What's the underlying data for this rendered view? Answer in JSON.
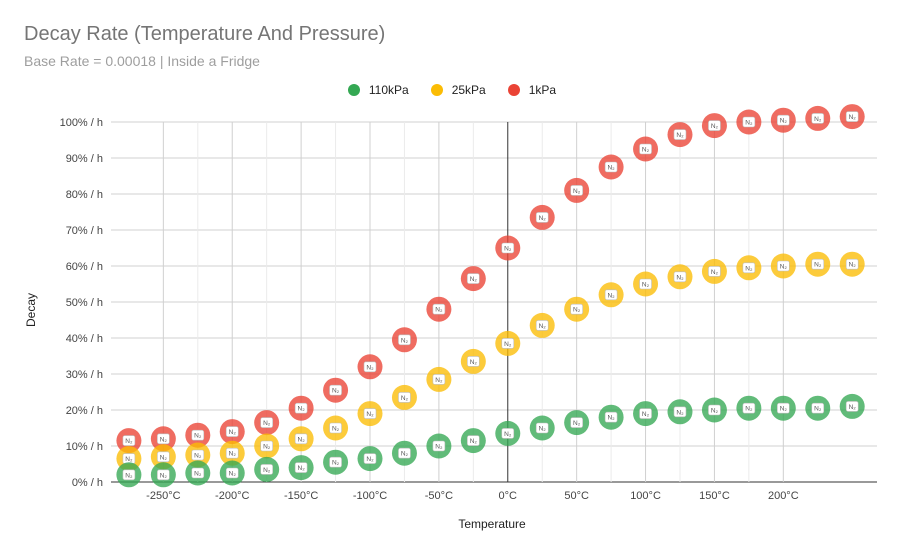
{
  "chart_data": {
    "type": "scatter",
    "title": "Decay Rate (Temperature And Pressure)",
    "subtitle": "Base Rate = 0.00018 | Inside a Fridge",
    "xlabel": "Temperature",
    "ylabel": "Decay",
    "xlim": [
      -288,
      268
    ],
    "ylim": [
      0,
      100
    ],
    "x_ticks": [
      -250,
      -200,
      -150,
      -100,
      -50,
      0,
      50,
      100,
      150,
      200
    ],
    "x_tick_labels": [
      "-250°C",
      "-200°C",
      "-150°C",
      "-100°C",
      "-50°C",
      "0°C",
      "50°C",
      "100°C",
      "150°C",
      "200°C"
    ],
    "y_ticks": [
      0,
      10,
      20,
      30,
      40,
      50,
      60,
      70,
      80,
      90,
      100
    ],
    "y_tick_labels": [
      "0% / h",
      "10% / h",
      "20% / h",
      "30% / h",
      "40% / h",
      "50% / h",
      "60% / h",
      "70% / h",
      "80% / h",
      "90% / h",
      "100% / h"
    ],
    "grid": true,
    "legend_position": "top",
    "point_label": "N₂",
    "x": [
      -275,
      -250,
      -225,
      -200,
      -175,
      -150,
      -125,
      -100,
      -75,
      -50,
      -25,
      0,
      25,
      50,
      75,
      100,
      125,
      150,
      175,
      200,
      225,
      250
    ],
    "series": [
      {
        "name": "110kPa",
        "color": "#34a853",
        "values": [
          2,
          2,
          2.5,
          2.5,
          3.5,
          4,
          5.5,
          6.5,
          8,
          10,
          11.5,
          13.5,
          15,
          16.5,
          18,
          19,
          19.5,
          20,
          20.5,
          20.5,
          20.5,
          21
        ]
      },
      {
        "name": "25kPa",
        "color": "#fbbc04",
        "values": [
          6.5,
          7,
          7.5,
          8,
          10,
          12,
          15,
          19,
          23.5,
          28.5,
          33.5,
          38.5,
          43.5,
          48,
          52,
          55,
          57,
          58.5,
          59.5,
          60,
          60.5,
          60.5
        ]
      },
      {
        "name": "1kPa",
        "color": "#ea4335",
        "values": [
          11.5,
          12,
          13,
          14,
          16.5,
          20.5,
          25.5,
          32,
          39.5,
          48,
          56.5,
          65,
          73.5,
          81,
          87.5,
          92.5,
          96.5,
          99,
          100,
          100.5,
          101,
          101.5
        ]
      }
    ]
  }
}
